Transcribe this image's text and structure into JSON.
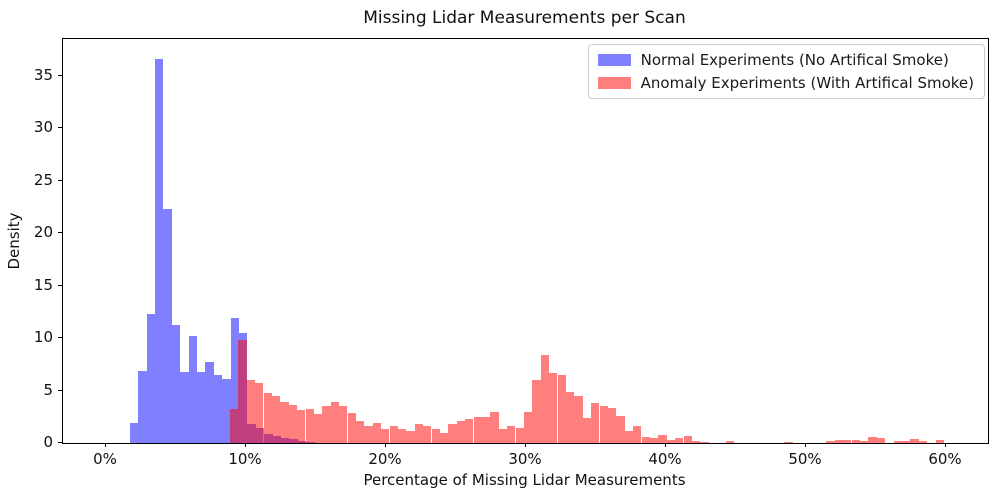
{
  "title": "Missing Lidar Measurements per Scan",
  "axes": {
    "x_label": "Percentage of Missing Lidar Measurements",
    "y_label": "Density"
  },
  "legend": {
    "position": "upper right",
    "items": [
      {
        "label": "Normal Experiments (No Artifical Smoke)",
        "color": "rgba(0,0,255,0.5)"
      },
      {
        "label": "Anomaly Experiments (With Artifical Smoke)",
        "color": "rgba(255,0,0,0.5)"
      }
    ]
  },
  "chart_data": {
    "type": "bar",
    "subtype": "overlapping-density-histogram",
    "title": "Missing Lidar Measurements per Scan",
    "xlabel": "Percentage of Missing Lidar Measurements",
    "ylabel": "Density",
    "grid": false,
    "legend_position": "upper right",
    "x_ticks": [
      {
        "value": 0,
        "label": "0%"
      },
      {
        "value": 10,
        "label": "10%"
      },
      {
        "value": 20,
        "label": "20%"
      },
      {
        "value": 30,
        "label": "30%"
      },
      {
        "value": 40,
        "label": "40%"
      },
      {
        "value": 50,
        "label": "50%"
      },
      {
        "value": 60,
        "label": "60%"
      }
    ],
    "y_ticks": [
      {
        "value": 0,
        "label": "0"
      },
      {
        "value": 5,
        "label": "5"
      },
      {
        "value": 10,
        "label": "10"
      },
      {
        "value": 15,
        "label": "15"
      },
      {
        "value": 20,
        "label": "20"
      },
      {
        "value": 25,
        "label": "25"
      },
      {
        "value": 30,
        "label": "30"
      },
      {
        "value": 35,
        "label": "35"
      }
    ],
    "x_range_pct": [
      -3.1,
      63.0
    ],
    "y_range": [
      0,
      38.5
    ],
    "series": [
      {
        "id": "normal",
        "name": "Normal Experiments (No Artifical Smoke)",
        "color": "rgba(0,0,255,0.5)",
        "bin_start_pct": 1.7,
        "bin_width_pct": 0.6,
        "densities": [
          1.9,
          6.9,
          12.3,
          36.6,
          22.3,
          11.2,
          6.8,
          10.2,
          6.8,
          7.7,
          6.5,
          6.1,
          11.9,
          10.5,
          1.8,
          1.4,
          0.9,
          0.7,
          0.5,
          0.35,
          0.2,
          0.1
        ]
      },
      {
        "id": "anomaly",
        "name": "Anomaly Experiments (With Artifical Smoke)",
        "color": "rgba(255,0,0,0.5)",
        "bin_start_pct": 8.85,
        "bin_width_pct": 0.6,
        "densities": [
          3.2,
          9.8,
          6.0,
          5.7,
          4.8,
          4.5,
          3.9,
          3.6,
          3.1,
          3.2,
          2.8,
          3.5,
          3.9,
          3.5,
          2.9,
          2.1,
          1.6,
          1.9,
          1.3,
          1.6,
          1.3,
          1.1,
          1.8,
          1.6,
          1.3,
          1.0,
          1.8,
          2.1,
          2.3,
          2.5,
          2.5,
          3.0,
          1.3,
          1.6,
          1.4,
          3.0,
          6.0,
          8.4,
          6.7,
          6.5,
          4.9,
          4.5,
          2.4,
          3.8,
          3.5,
          3.3,
          2.6,
          1.1,
          1.6,
          0.6,
          0.5,
          0.8,
          0.3,
          0.5,
          0.7,
          0.2,
          0.1,
          0.0,
          0.0,
          0.2,
          0.0,
          0.0,
          0.0,
          0.0,
          0.0,
          0.0,
          0.1,
          0.0,
          0.0,
          0.0,
          0.0,
          0.2,
          0.3,
          0.3,
          0.3,
          0.2,
          0.6,
          0.5,
          0.0,
          0.2,
          0.2,
          0.4,
          0.2,
          0.0,
          0.3
        ]
      }
    ]
  }
}
